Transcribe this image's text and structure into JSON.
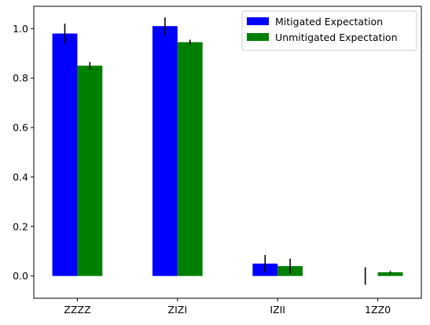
{
  "chart_data": {
    "type": "bar",
    "title": "",
    "xlabel": "",
    "ylabel": "",
    "categories": [
      "ZZZZ",
      "ZIZI",
      "IZII",
      "1ZZ0"
    ],
    "series": [
      {
        "name": "Mitigated Expectation",
        "color": "#0000ff",
        "values": [
          0.98,
          1.01,
          0.05,
          0.0
        ],
        "errors": [
          0.04,
          0.035,
          0.035,
          0.035
        ]
      },
      {
        "name": "Unmitigated Expectation",
        "color": "#008000",
        "values": [
          0.85,
          0.945,
          0.04,
          0.015
        ],
        "errors": [
          0.015,
          0.01,
          0.03,
          0.005
        ]
      }
    ],
    "ylim": [
      -0.09,
      1.09
    ],
    "yticks": [
      0.0,
      0.2,
      0.4,
      0.6,
      0.8,
      1.0
    ],
    "ytick_labels": [
      "0.0",
      "0.2",
      "0.4",
      "0.6",
      "0.8",
      "1.0"
    ],
    "grid": false,
    "legend_position": "top-right"
  }
}
